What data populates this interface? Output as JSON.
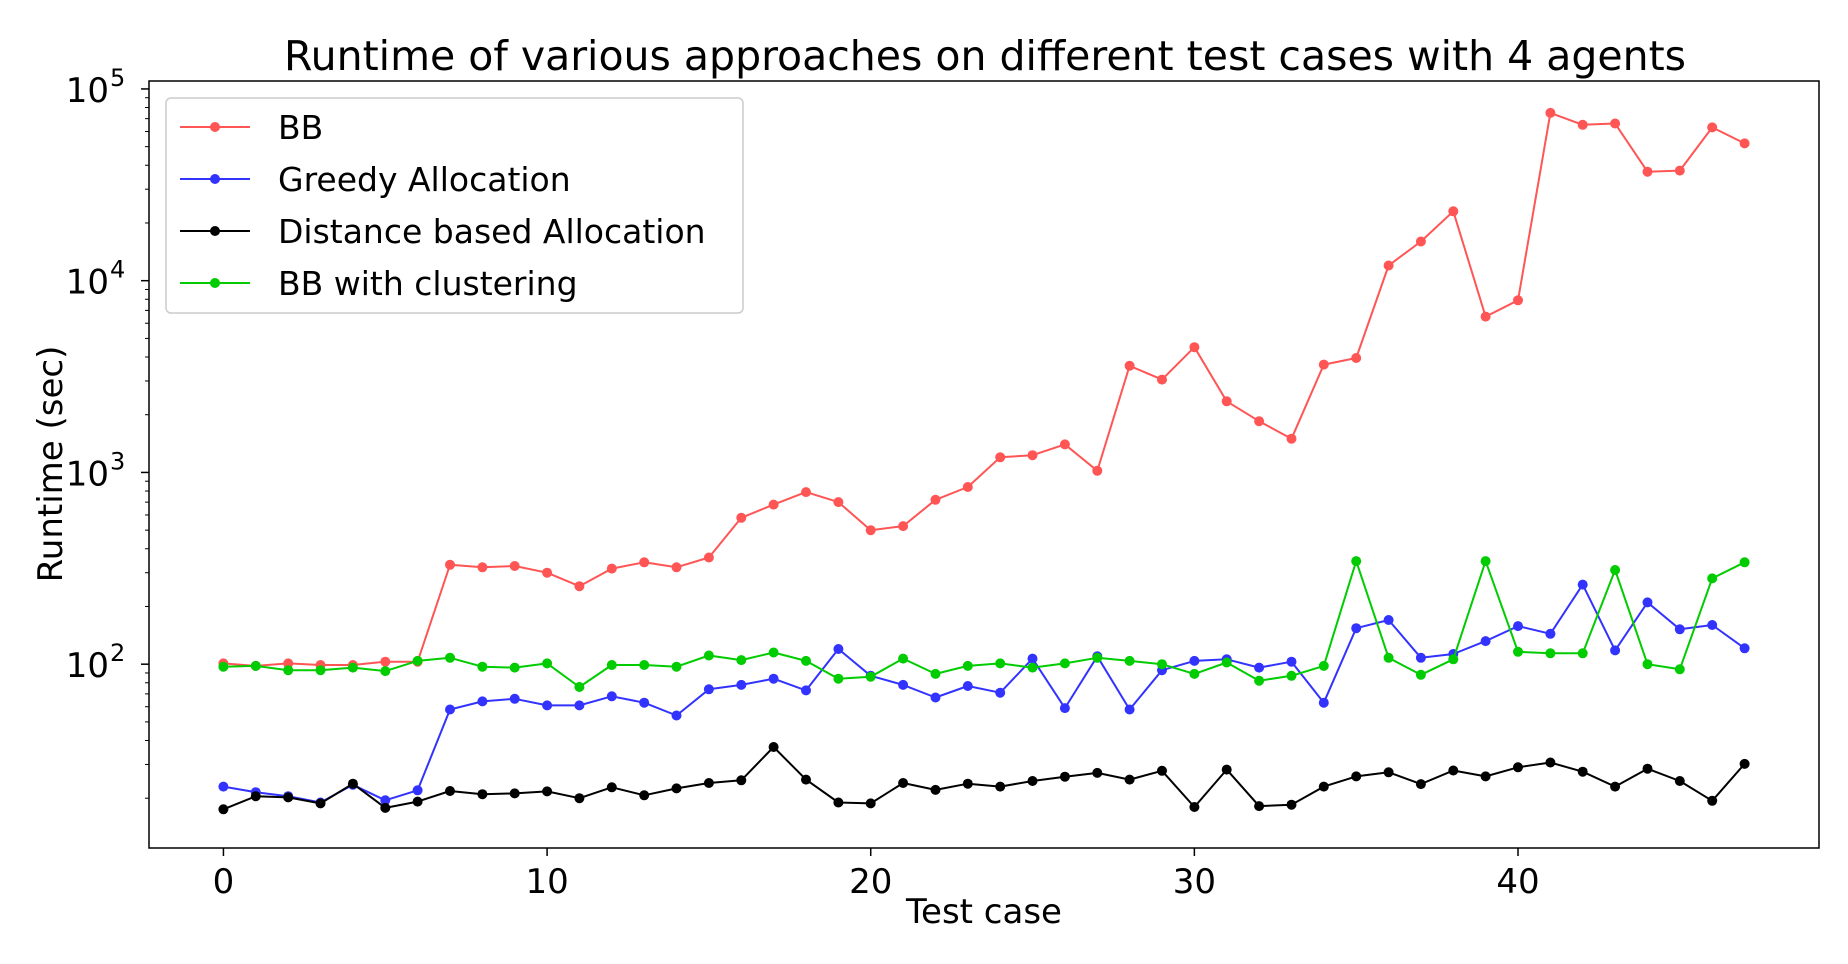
{
  "chart_data": {
    "type": "line",
    "title": "Runtime of various approaches on different test cases with 4 agents",
    "xlabel": "Test case",
    "ylabel": "Runtime (sec)",
    "xlim": [
      -2.3,
      49.3
    ],
    "ylim": [
      11,
      110000
    ],
    "yscale": "log",
    "grid": false,
    "legend_position": "top-left",
    "x_ticks": [
      0,
      10,
      20,
      30,
      40
    ],
    "y_ticks": [
      {
        "value": 100,
        "base": "10",
        "exp": "2"
      },
      {
        "value": 1000,
        "base": "10",
        "exp": "3"
      },
      {
        "value": 10000,
        "base": "10",
        "exp": "4"
      },
      {
        "value": 100000,
        "base": "10",
        "exp": "5"
      }
    ],
    "x": [
      0,
      1,
      2,
      3,
      4,
      5,
      6,
      7,
      8,
      9,
      10,
      11,
      12,
      13,
      14,
      15,
      16,
      17,
      18,
      19,
      20,
      21,
      22,
      23,
      24,
      25,
      26,
      27,
      28,
      29,
      30,
      31,
      32,
      33,
      34,
      35,
      36,
      37,
      38,
      39,
      40,
      41,
      42,
      43,
      44,
      45,
      46,
      47
    ],
    "series": [
      {
        "name": "BB",
        "color": "#ff5555",
        "values": [
          101,
          98,
          101,
          99,
          99,
          103,
          103,
          330,
          320,
          325,
          300,
          255,
          315,
          340,
          320,
          360,
          580,
          680,
          790,
          700,
          500,
          525,
          720,
          840,
          1200,
          1230,
          1400,
          1020,
          3600,
          3050,
          4500,
          2350,
          1850,
          1500,
          3650,
          3950,
          12000,
          16000,
          23000,
          6500,
          7900,
          75000,
          65000,
          66000,
          37000,
          37500,
          63000,
          52000
        ]
      },
      {
        "name": "Greedy Allocation",
        "color": "#3333ff",
        "values": [
          23,
          21.5,
          20.5,
          19,
          23.5,
          19.5,
          22,
          58,
          64,
          66,
          61,
          61,
          68,
          63,
          54,
          74,
          78,
          84,
          73,
          120,
          87,
          78,
          67,
          77,
          71,
          107,
          59,
          110,
          58,
          93,
          104,
          106,
          96,
          103,
          63,
          154,
          170,
          108,
          113,
          132,
          158,
          144,
          260,
          118,
          210,
          152,
          160,
          121
        ]
      },
      {
        "name": "Distance based Allocation",
        "color": "#000000",
        "values": [
          17.5,
          20.5,
          20.2,
          18.8,
          23.8,
          17.8,
          19.2,
          21.8,
          21,
          21.2,
          21.7,
          20,
          22.8,
          20.7,
          22.5,
          24,
          24.8,
          37,
          25,
          19,
          18.8,
          24,
          22.1,
          23.8,
          23,
          24.6,
          25.9,
          27.1,
          25,
          27.8,
          18,
          28.2,
          18.2,
          18.5,
          23,
          26,
          27.3,
          23.7,
          27.9,
          26,
          29,
          30.7,
          27.5,
          23,
          28.5,
          24.6,
          19.4,
          30.2
        ]
      },
      {
        "name": "BB with clustering",
        "color": "#00cc00",
        "values": [
          97,
          98,
          93,
          93,
          96,
          92,
          104,
          108,
          97,
          96,
          101,
          76,
          99,
          99,
          97,
          111,
          105,
          115,
          104,
          84,
          86,
          107,
          89,
          98,
          101,
          96,
          101,
          108,
          104,
          100,
          89,
          102,
          82,
          87,
          98,
          345,
          108,
          88,
          106,
          345,
          116,
          114,
          114,
          310,
          100,
          94,
          280,
          340
        ]
      }
    ]
  }
}
